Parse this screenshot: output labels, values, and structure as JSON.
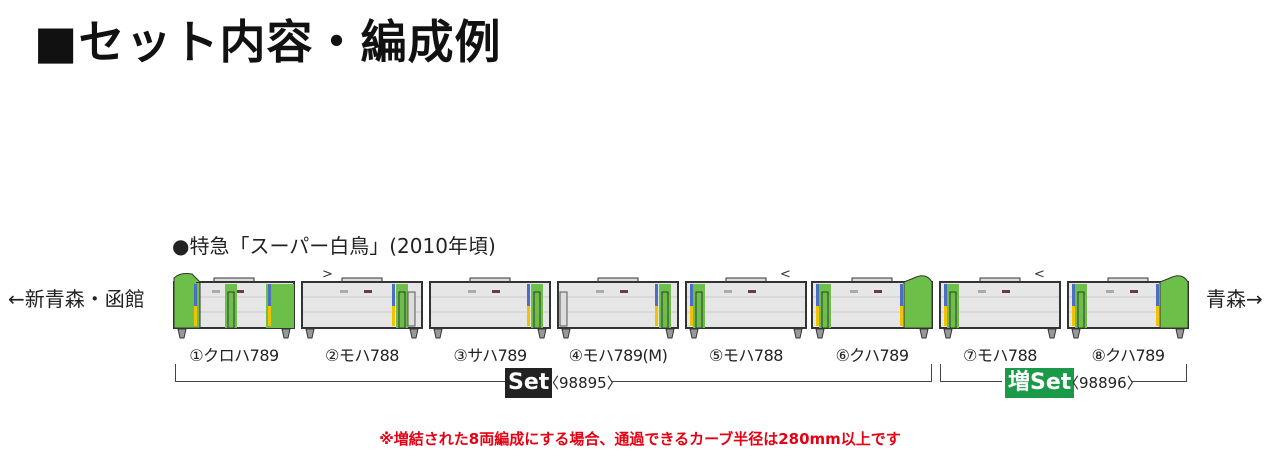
{
  "title": "■セット内容・編成例",
  "subtitle": "●特急「スーパー白鳥」(2010年頃)",
  "direction_left": "←新青森・函館",
  "direction_right": "青森→",
  "cars": [
    {
      "label": "①クロハ789"
    },
    {
      "label": "②モハ788"
    },
    {
      "label": "③サハ789"
    },
    {
      "label": "④モハ789(M)"
    },
    {
      "label": "⑤モハ788"
    },
    {
      "label": "⑥クハ789"
    },
    {
      "label": "⑦モハ788"
    },
    {
      "label": "⑧クハ789"
    }
  ],
  "sets": [
    {
      "badge": "Set",
      "code": "〈98895〉",
      "badge_color": "#222222"
    },
    {
      "badge": "増Set",
      "code": "〈98896〉",
      "badge_color": "#1a9a48"
    }
  ],
  "note": "※増結された8両編成にする場合、通過できるカーブ半径は280mm以上です",
  "colors": {
    "green": "#6cc04a",
    "blue": "#4a6fc0",
    "yellow": "#f2c200",
    "body": "#e6e6e6",
    "note": "#e60012"
  }
}
